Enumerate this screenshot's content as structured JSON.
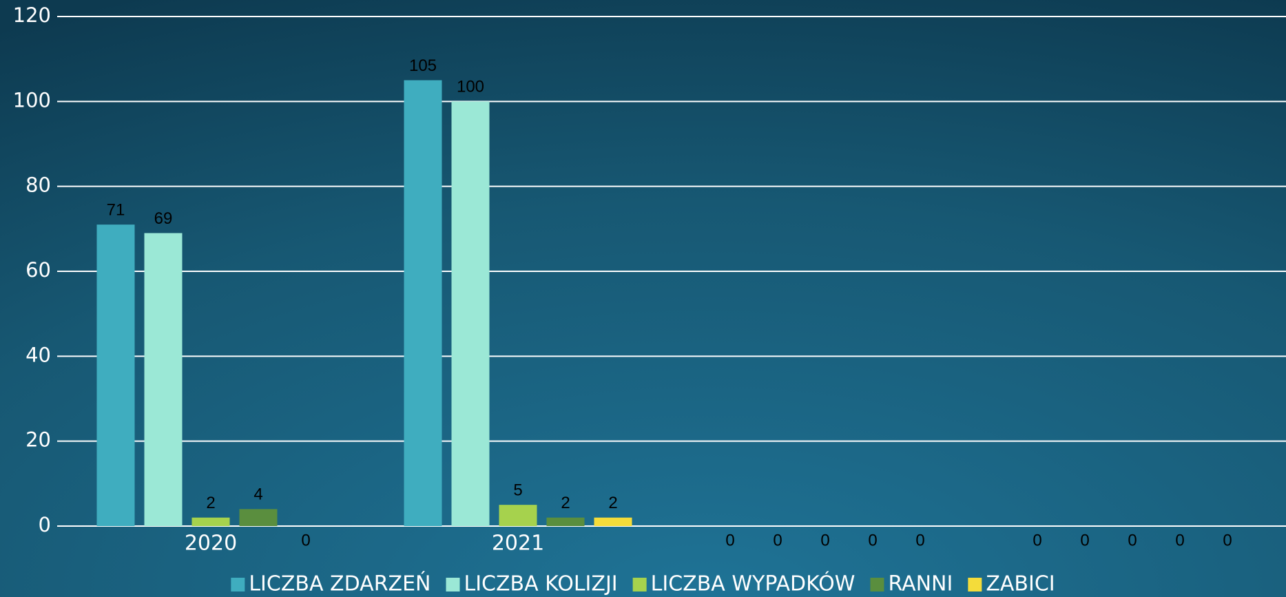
{
  "chart_data": {
    "type": "bar",
    "categories": [
      "2020",
      "2021",
      null,
      null
    ],
    "series": [
      {
        "name": "LICZBA ZDARZEŃ",
        "color": "#3fadbf",
        "values": [
          71,
          105,
          0,
          0
        ]
      },
      {
        "name": "LICZBA KOLIZJI",
        "color": "#9be8d6",
        "values": [
          69,
          100,
          0,
          0
        ]
      },
      {
        "name": "LICZBA WYPADKÓW",
        "color": "#a6d24d",
        "values": [
          2,
          5,
          0,
          0
        ]
      },
      {
        "name": "RANNI",
        "color": "#5a8e3e",
        "values": [
          4,
          2,
          0,
          0
        ]
      },
      {
        "name": "ZABICI",
        "color": "#f4dc3a",
        "values": [
          0,
          2,
          0,
          0
        ]
      }
    ],
    "ylim": [
      0,
      120
    ],
    "yticks": [
      0,
      20,
      40,
      60,
      80,
      100,
      120
    ],
    "grid": true,
    "legend": "bottom"
  }
}
